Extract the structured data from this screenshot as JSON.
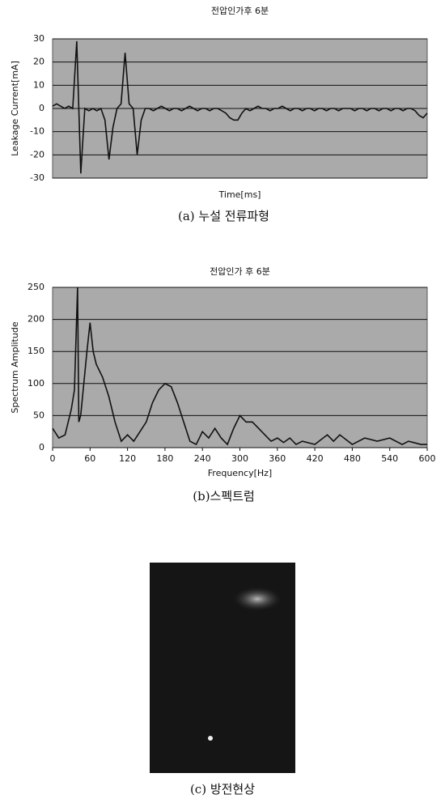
{
  "chart_data": [
    {
      "type": "line",
      "title": "전압인가후 6분",
      "ylabel": "Leakage Current[mA]",
      "xlabel": "Time[ms]",
      "caption": "(a) 누설 전류파형",
      "color": "#111111",
      "grid": true,
      "ylim": [
        -30,
        30
      ],
      "yticks": [
        -30,
        -20,
        -10,
        0,
        10,
        20,
        30
      ],
      "values": [
        1,
        2,
        1,
        0,
        1,
        0,
        29,
        -28,
        0,
        -1,
        0,
        -1,
        0,
        -5,
        -22,
        -8,
        0,
        2,
        24,
        2,
        0,
        -20,
        -5,
        0,
        0,
        -1,
        0,
        1,
        0,
        -1,
        0,
        0,
        -1,
        0,
        1,
        0,
        -1,
        0,
        0,
        -1,
        0,
        0,
        -1,
        -2,
        -4,
        -5,
        -5,
        -2,
        0,
        -1,
        0,
        1,
        0,
        0,
        -1,
        0,
        0,
        1,
        0,
        -1,
        0,
        0,
        -1,
        0,
        0,
        -1,
        0,
        0,
        -1,
        0,
        0,
        -1,
        0,
        0,
        0,
        -1,
        0,
        0,
        -1,
        0,
        0,
        -1,
        0,
        0,
        -1,
        0,
        0,
        -1,
        0,
        0,
        -1,
        -3,
        -4,
        -2
      ]
    },
    {
      "type": "line",
      "title": "전압인가 후 6분",
      "ylabel": "Spectrum Amplitude",
      "xlabel": "Frequency[Hz]",
      "caption": "(b)스펙트럼",
      "color": "#111111",
      "grid": true,
      "ylim": [
        0,
        250
      ],
      "yticks": [
        0,
        50,
        100,
        150,
        200,
        250
      ],
      "xlim": [
        0,
        600
      ],
      "xticks": [
        0,
        60,
        120,
        180,
        240,
        300,
        360,
        420,
        480,
        540,
        600
      ],
      "x": [
        0,
        10,
        20,
        30,
        35,
        40,
        42,
        45,
        50,
        55,
        60,
        65,
        70,
        80,
        90,
        100,
        110,
        120,
        130,
        140,
        150,
        160,
        170,
        180,
        190,
        200,
        210,
        220,
        230,
        240,
        250,
        260,
        270,
        280,
        290,
        300,
        310,
        320,
        330,
        340,
        350,
        360,
        370,
        380,
        390,
        400,
        420,
        440,
        450,
        460,
        480,
        500,
        520,
        540,
        560,
        570,
        590,
        600
      ],
      "values": [
        30,
        15,
        20,
        60,
        90,
        250,
        40,
        50,
        100,
        150,
        195,
        150,
        130,
        110,
        80,
        40,
        10,
        20,
        10,
        25,
        40,
        70,
        90,
        100,
        95,
        70,
        40,
        10,
        5,
        25,
        15,
        30,
        15,
        5,
        30,
        50,
        40,
        40,
        30,
        20,
        10,
        15,
        8,
        15,
        5,
        10,
        5,
        20,
        10,
        20,
        5,
        15,
        10,
        15,
        5,
        10,
        5,
        5
      ]
    }
  ],
  "photo_caption": "(c) 방전현상"
}
